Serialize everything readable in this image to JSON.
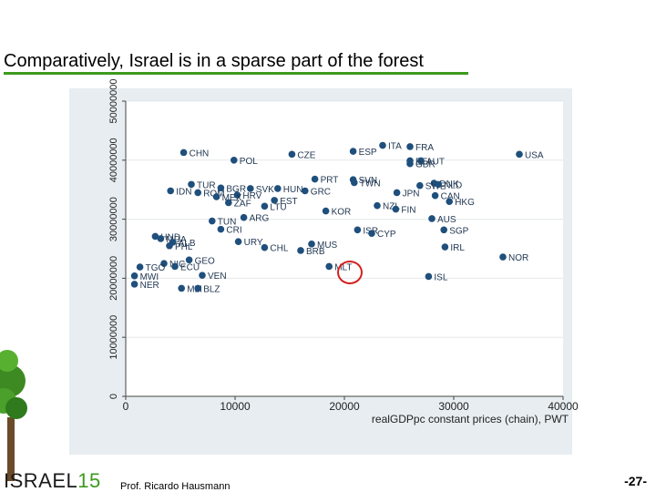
{
  "slide": {
    "title": "Comparatively, Israel is in a sparse part of the forest",
    "brand_word": "ISRAEL",
    "brand_number": "15",
    "author": "Prof. Ricardo Hausmann",
    "page_number": "-27-"
  },
  "colors": {
    "plot_background": "#e7edf1",
    "marker": "#1f4f7c",
    "title_rule": "#3d9a1e",
    "annotation_circle": "#d42020"
  },
  "chart_data": {
    "type": "scatter",
    "title": "",
    "xlabel": "realGDPpc constant prices (chain), PWT",
    "ylabel": "",
    "xlim": [
      0,
      40000
    ],
    "ylim": [
      0,
      50000000
    ],
    "x_ticks": [
      0,
      10000,
      20000,
      30000,
      40000
    ],
    "x_tick_labels": [
      "0",
      "10000",
      "20000",
      "30000",
      "40000"
    ],
    "y_ticks": [
      0,
      10000000,
      20000000,
      30000000,
      40000000,
      50000000
    ],
    "y_tick_labels": [
      "0",
      "10000000",
      "20000000",
      "30000000",
      "40000000",
      "50000000"
    ],
    "grid": true,
    "highlight": "ISR",
    "points": [
      {
        "label": "ITA",
        "x": 23500,
        "y": 42500000
      },
      {
        "label": "FRA",
        "x": 26000,
        "y": 42300000
      },
      {
        "label": "CHN",
        "x": 5300,
        "y": 41300000
      },
      {
        "label": "ESP",
        "x": 20800,
        "y": 41500000
      },
      {
        "label": "CZE",
        "x": 15200,
        "y": 41000000
      },
      {
        "label": "USA",
        "x": 36000,
        "y": 41000000
      },
      {
        "label": "POL",
        "x": 9900,
        "y": 40000000
      },
      {
        "label": "BEL",
        "x": 26000,
        "y": 39900000
      },
      {
        "label": "AUT",
        "x": 27000,
        "y": 39900000
      },
      {
        "label": "GBR",
        "x": 26000,
        "y": 39400000
      },
      {
        "label": "PRT",
        "x": 17300,
        "y": 36800000
      },
      {
        "label": "SVN",
        "x": 20800,
        "y": 36700000
      },
      {
        "label": "TWN",
        "x": 20900,
        "y": 36200000
      },
      {
        "label": "DNK",
        "x": 28200,
        "y": 36100000
      },
      {
        "label": "SWE",
        "x": 26900,
        "y": 35700000
      },
      {
        "label": "NLD",
        "x": 28600,
        "y": 35900000
      },
      {
        "label": "TUR",
        "x": 6000,
        "y": 35900000
      },
      {
        "label": "BGR",
        "x": 8700,
        "y": 35300000
      },
      {
        "label": "SVK",
        "x": 11400,
        "y": 35200000
      },
      {
        "label": "HUN",
        "x": 13900,
        "y": 35200000
      },
      {
        "label": "GRC",
        "x": 16400,
        "y": 34800000
      },
      {
        "label": "IDN",
        "x": 4100,
        "y": 34800000
      },
      {
        "label": "ROM",
        "x": 6600,
        "y": 34500000
      },
      {
        "label": "HRV",
        "x": 10200,
        "y": 34100000
      },
      {
        "label": "JPN",
        "x": 24800,
        "y": 34500000
      },
      {
        "label": "CAN",
        "x": 28300,
        "y": 34000000
      },
      {
        "label": "MEX",
        "x": 8300,
        "y": 33800000
      },
      {
        "label": "EST",
        "x": 13600,
        "y": 33200000
      },
      {
        "label": "HKG",
        "x": 29600,
        "y": 33000000
      },
      {
        "label": "ZAF",
        "x": 9400,
        "y": 32800000
      },
      {
        "label": "LTU",
        "x": 12700,
        "y": 32200000
      },
      {
        "label": "NZL",
        "x": 23000,
        "y": 32300000
      },
      {
        "label": "FIN",
        "x": 24700,
        "y": 31700000
      },
      {
        "label": "KOR",
        "x": 18300,
        "y": 31400000
      },
      {
        "label": "ARG",
        "x": 10800,
        "y": 30300000
      },
      {
        "label": "AUS",
        "x": 28000,
        "y": 30100000
      },
      {
        "label": "TUN",
        "x": 7900,
        "y": 29700000
      },
      {
        "label": "CRI",
        "x": 8700,
        "y": 28300000
      },
      {
        "label": "ISR",
        "x": 21200,
        "y": 28200000
      },
      {
        "label": "SGP",
        "x": 29100,
        "y": 28200000
      },
      {
        "label": "CYP",
        "x": 22500,
        "y": 27600000
      },
      {
        "label": "HND",
        "x": 2700,
        "y": 27100000
      },
      {
        "label": "MDA",
        "x": 3200,
        "y": 26700000
      },
      {
        "label": "URY",
        "x": 10300,
        "y": 26200000
      },
      {
        "label": "ALB",
        "x": 4300,
        "y": 26100000
      },
      {
        "label": "MUS",
        "x": 17000,
        "y": 25800000
      },
      {
        "label": "PHL",
        "x": 4000,
        "y": 25500000
      },
      {
        "label": "IRL",
        "x": 29200,
        "y": 25300000
      },
      {
        "label": "CHL",
        "x": 12700,
        "y": 25200000
      },
      {
        "label": "BRB",
        "x": 16000,
        "y": 24700000
      },
      {
        "label": "NOR",
        "x": 34500,
        "y": 23600000
      },
      {
        "label": "GEO",
        "x": 5800,
        "y": 23100000
      },
      {
        "label": "NIC",
        "x": 3500,
        "y": 22500000
      },
      {
        "label": "ECU",
        "x": 4500,
        "y": 22000000
      },
      {
        "label": "MLT",
        "x": 18600,
        "y": 22000000
      },
      {
        "label": "TGO",
        "x": 1300,
        "y": 21900000
      },
      {
        "label": "VEN",
        "x": 7000,
        "y": 20500000
      },
      {
        "label": "MWI",
        "x": 800,
        "y": 20400000
      },
      {
        "label": "ISL",
        "x": 27700,
        "y": 20300000
      },
      {
        "label": "NER",
        "x": 800,
        "y": 19000000
      },
      {
        "label": "MLI",
        "x": 5100,
        "y": 18300000
      },
      {
        "label": "BLZ",
        "x": 6600,
        "y": 18300000
      }
    ]
  }
}
